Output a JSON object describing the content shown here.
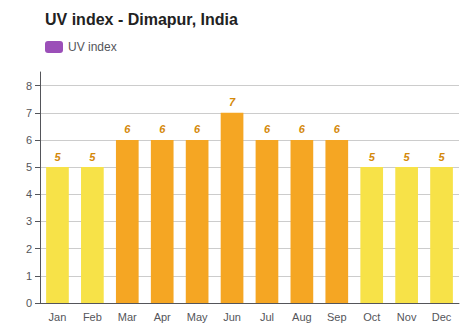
{
  "chart_data": {
    "type": "bar",
    "title": "UV index - Dimapur, India",
    "categories": [
      "Jan",
      "Feb",
      "Mar",
      "Apr",
      "May",
      "Jun",
      "Jul",
      "Aug",
      "Sep",
      "Oct",
      "Nov",
      "Dec"
    ],
    "series": [
      {
        "name": "UV index",
        "color": "#9b4fb8",
        "colors": [
          "#f7e248",
          "#f7e248",
          "#f5a623",
          "#f5a623",
          "#f5a623",
          "#f5a623",
          "#f5a623",
          "#f5a623",
          "#f5a623",
          "#f7e248",
          "#f7e248",
          "#f7e248"
        ],
        "values": [
          5,
          5,
          6,
          6,
          6,
          7,
          6,
          6,
          6,
          5,
          5,
          5
        ]
      }
    ],
    "ylim": [
      0,
      8.5
    ],
    "yticks": [
      0,
      1,
      2,
      3,
      4,
      5,
      6,
      7,
      8
    ],
    "grid": true,
    "legend": "upper left",
    "data_labels": true
  }
}
